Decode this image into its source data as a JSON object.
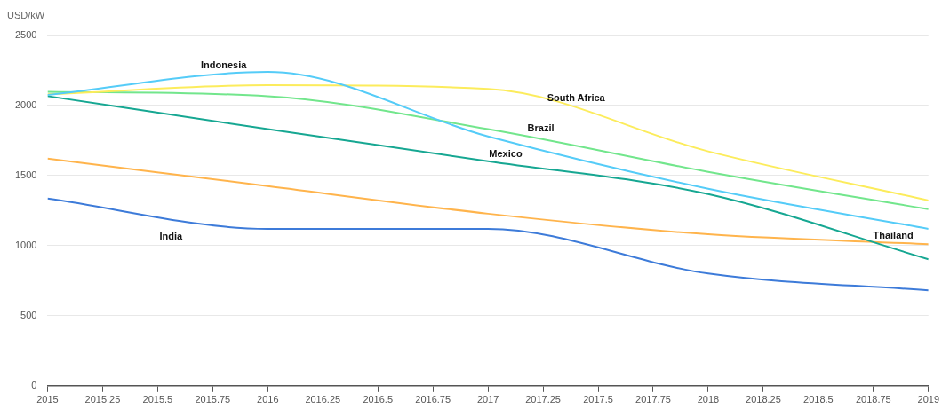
{
  "chart_data": {
    "type": "line",
    "ylabel": "USD/kW",
    "x": [
      2015,
      2016,
      2017,
      2018,
      2019
    ],
    "series": [
      {
        "name": "Indonesia",
        "color": "#55ccf8",
        "values": [
          2075,
          2240,
          1780,
          1406,
          1120
        ]
      },
      {
        "name": "South Africa",
        "color": "#fcec5c",
        "values": [
          2080,
          2145,
          2118,
          1673,
          1323
        ]
      },
      {
        "name": "Brazil",
        "color": "#72e68c",
        "values": [
          2098,
          2067,
          1832,
          1527,
          1260
        ]
      },
      {
        "name": "Mexico",
        "color": "#16a792",
        "values": [
          2067,
          1832,
          1603,
          1368,
          903
        ]
      },
      {
        "name": "Thailand",
        "color": "#ffb44c",
        "values": [
          1622,
          1425,
          1228,
          1081,
          1011
        ]
      },
      {
        "name": "India",
        "color": "#3d7bd9",
        "values": [
          1336,
          1120,
          1120,
          801,
          681
        ]
      }
    ],
    "xlim": [
      2015,
      2019
    ],
    "xticks": [
      2015,
      2015.25,
      2015.5,
      2015.75,
      2016,
      2016.25,
      2016.5,
      2016.75,
      2017,
      2017.25,
      2017.5,
      2017.75,
      2018,
      2018.25,
      2018.5,
      2018.75,
      2019
    ],
    "ylim": [
      0,
      2500
    ],
    "yticks": [
      0,
      500,
      1000,
      1500,
      2000,
      2500
    ],
    "grid": "y",
    "legend": false,
    "marker": "none",
    "line_style": "solid"
  }
}
